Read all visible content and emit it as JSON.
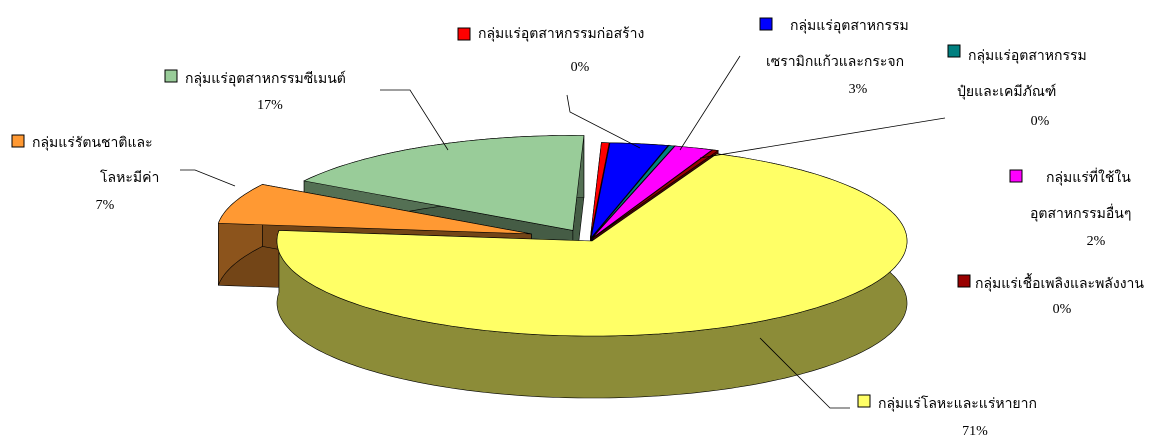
{
  "chart_data": {
    "type": "pie3d",
    "categories": [
      "กลุ่มแร่อุตสาหกรรมก่อสร้าง",
      "กลุ่มแร่อุตสาหกรรม\nเซรามิกแก้วและกระจก",
      "กลุ่มแร่อุตสาหกรรม\nปุ๋ยและเคมีภัณฑ์",
      "กลุ่มแร่ที่ใช้ใน\nอุตสาหกรรมอื่นๆ",
      "กลุ่มแร่เชื้อเพลิงและพลังงาน",
      "กลุ่มแร่โลหะและแร่หายาก",
      "กลุ่มแร่รัตนชาติและ\nโลหะมีค่า",
      "กลุ่มแร่อุตสาหกรรมซีเมนต์"
    ],
    "values": [
      0.4,
      3,
      0.3,
      2,
      0.3,
      71,
      7,
      17
    ],
    "value_labels": [
      "0%",
      "3%",
      "0%",
      "2%",
      "0%",
      "71%",
      "7%",
      "17%"
    ],
    "colors": [
      "#ff0000",
      "#0000ff",
      "#008080",
      "#ff00ff",
      "#990000",
      "#ffff66",
      "#ff9933",
      "#99cc99"
    ]
  }
}
